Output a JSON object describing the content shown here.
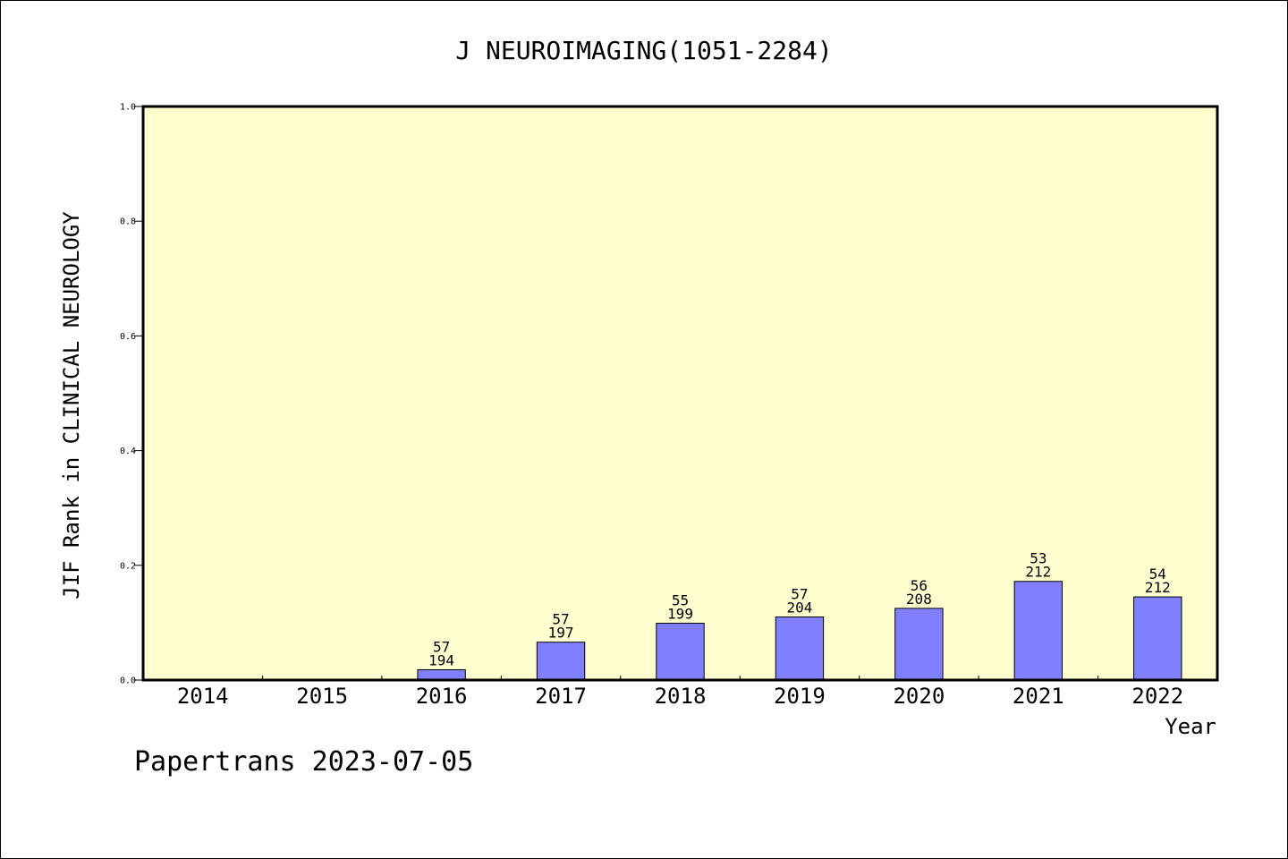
{
  "chart_data": {
    "type": "bar",
    "title": "J NEUROIMAGING(1051-2284)",
    "xlabel": "Year",
    "ylabel": "JIF Rank in CLINICAL NEUROLOGY",
    "categories": [
      "2014",
      "2015",
      "2016",
      "2017",
      "2018",
      "2019",
      "2020",
      "2021",
      "2022"
    ],
    "values": [
      null,
      null,
      0.018,
      0.066,
      0.099,
      0.11,
      0.125,
      0.172,
      0.145
    ],
    "ranks": [
      null,
      null,
      57,
      57,
      55,
      57,
      56,
      53,
      54
    ],
    "totals": [
      null,
      null,
      194,
      197,
      199,
      204,
      208,
      212,
      212
    ],
    "ylim": [
      0,
      1.0
    ],
    "yticks": [
      "0.0",
      "0.2",
      "0.4",
      "0.6",
      "0.8",
      "1.0"
    ],
    "grid": false,
    "colors": {
      "bar": "#8080ff",
      "plot_bg": "#ffffd0"
    }
  },
  "footer": "Papertrans 2023-07-05"
}
